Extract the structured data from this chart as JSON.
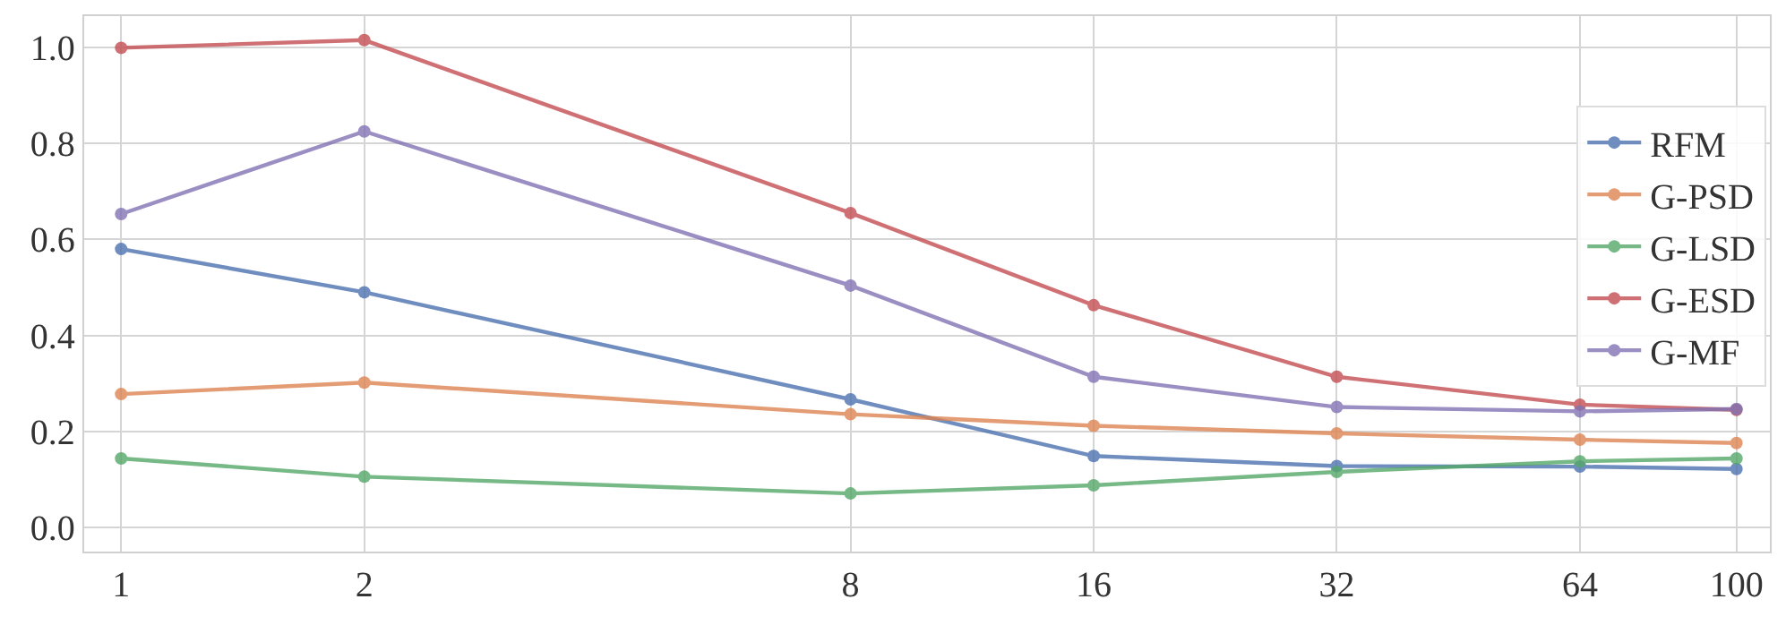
{
  "chart_data": {
    "type": "line",
    "log": "x",
    "x": [
      1,
      2,
      8,
      16,
      32,
      64,
      100
    ],
    "xlim": [
      0.9,
      110
    ],
    "xticks": [
      1,
      2,
      8,
      16,
      32,
      64,
      100
    ],
    "ylim": [
      -0.05,
      1.065
    ],
    "yticks": [
      {
        "value": 0,
        "label": "0.0"
      },
      {
        "value": 0.2,
        "label": "0.2"
      },
      {
        "value": 0.4,
        "label": "0.4"
      },
      {
        "value": 0.6,
        "label": "0.6"
      },
      {
        "value": 0.8,
        "label": "0.8"
      },
      {
        "value": 1,
        "label": "1.0"
      }
    ],
    "grid": true,
    "legend": "right",
    "marker": "circle",
    "line_style": "solid",
    "series": [
      {
        "name": "RFM",
        "color": "#4c72b0",
        "values": [
          0.58,
          0.49,
          0.267,
          0.149,
          0.128,
          0.127,
          0.122
        ]
      },
      {
        "name": "G-PSD",
        "color": "#dd8452",
        "values": [
          0.278,
          0.302,
          0.236,
          0.212,
          0.196,
          0.183,
          0.176
        ]
      },
      {
        "name": "G-LSD",
        "color": "#55a868",
        "values": [
          0.144,
          0.106,
          0.071,
          0.088,
          0.116,
          0.138,
          0.144
        ]
      },
      {
        "name": "G-ESD",
        "color": "#c44e52",
        "values": [
          0.999,
          1.015,
          0.655,
          0.463,
          0.314,
          0.256,
          0.245
        ]
      },
      {
        "name": "G-MF",
        "color": "#8172b3",
        "values": [
          0.653,
          0.825,
          0.504,
          0.314,
          0.251,
          0.242,
          0.247
        ]
      }
    ]
  }
}
